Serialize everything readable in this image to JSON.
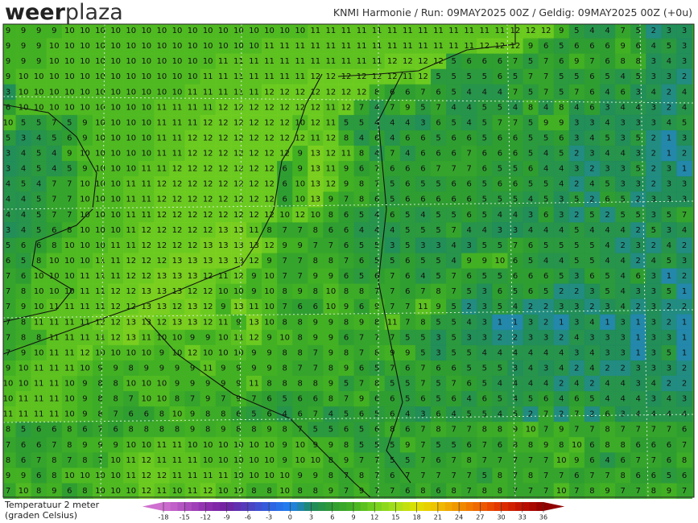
{
  "header": {
    "logo_bold": "weer",
    "logo_light": "plaza",
    "run_info": "KNMI Harmonie / Run: 09MAY2025 00Z / Geldig: 09MAY2025 00Z (+0u)"
  },
  "legend": {
    "title": [
      "Temperatuur 2 meter",
      "(graden Celsius)"
    ],
    "ticks": [
      -18,
      -15,
      -12,
      -9,
      -6,
      -3,
      0,
      3,
      6,
      9,
      12,
      15,
      18,
      21,
      24,
      27,
      30,
      33,
      36
    ],
    "colors": [
      "#d070d0",
      "#b050c0",
      "#9030b0",
      "#7020a0",
      "#5040c0",
      "#3060e0",
      "#2080f0",
      "#1f8a60",
      "#2e9c32",
      "#44b222",
      "#74d01e",
      "#a6e01c",
      "#e0e000",
      "#f0c000",
      "#f09000",
      "#f06000",
      "#e03000",
      "#c01000",
      "#900000"
    ]
  },
  "grid": [
    [
      9,
      9,
      9,
      9,
      10,
      10,
      10,
      10,
      10,
      10,
      10,
      10,
      10,
      10,
      10,
      10,
      10,
      10,
      10,
      10,
      11,
      11,
      11,
      11,
      11,
      11,
      11,
      11,
      11,
      11,
      11,
      11,
      11,
      12,
      12,
      12,
      9,
      5,
      4,
      4,
      7,
      5,
      2,
      3,
      3
    ],
    [
      9,
      9,
      9,
      10,
      10,
      10,
      10,
      10,
      10,
      10,
      10,
      10,
      10,
      10,
      10,
      10,
      10,
      11,
      11,
      11,
      11,
      11,
      11,
      11,
      11,
      11,
      11,
      11,
      11,
      11,
      11,
      12,
      12,
      12,
      9,
      6,
      5,
      6,
      6,
      6,
      9,
      6,
      4,
      5,
      3
    ],
    [
      9,
      9,
      9,
      10,
      10,
      10,
      10,
      10,
      10,
      10,
      10,
      10,
      10,
      10,
      11,
      11,
      11,
      11,
      11,
      11,
      11,
      11,
      11,
      11,
      11,
      12,
      12,
      12,
      12,
      5,
      6,
      6,
      6,
      7,
      5,
      7,
      6,
      9,
      7,
      6,
      8,
      8,
      3,
      4,
      3
    ],
    [
      9,
      10,
      10,
      10,
      10,
      10,
      10,
      10,
      10,
      10,
      10,
      10,
      10,
      11,
      11,
      11,
      11,
      11,
      11,
      11,
      12,
      12,
      12,
      12,
      12,
      12,
      11,
      12,
      5,
      5,
      5,
      5,
      6,
      5,
      7,
      7,
      5,
      5,
      6,
      5,
      4,
      5,
      3,
      3,
      2
    ],
    [
      3,
      10,
      10,
      10,
      10,
      10,
      10,
      10,
      10,
      10,
      10,
      10,
      11,
      11,
      11,
      11,
      11,
      12,
      12,
      12,
      12,
      12,
      12,
      12,
      8,
      6,
      6,
      7,
      6,
      5,
      4,
      4,
      4,
      7,
      5,
      7,
      5,
      7,
      6,
      4,
      6,
      3,
      4,
      2,
      4
    ],
    [
      6,
      10,
      10,
      10,
      10,
      10,
      10,
      10,
      10,
      10,
      11,
      11,
      11,
      11,
      12,
      12,
      12,
      12,
      12,
      12,
      12,
      11,
      12,
      7,
      4,
      7,
      9,
      5,
      7,
      4,
      4,
      5,
      5,
      4,
      8,
      4,
      8,
      4,
      6,
      3,
      4,
      4,
      3,
      2,
      4
    ],
    [
      10,
      5,
      5,
      7,
      5,
      9,
      10,
      10,
      10,
      10,
      11,
      11,
      11,
      12,
      12,
      12,
      12,
      12,
      12,
      10,
      12,
      11,
      5,
      5,
      4,
      4,
      4,
      3,
      6,
      5,
      4,
      5,
      7,
      7,
      5,
      9,
      9,
      3,
      3,
      4,
      3,
      3,
      3,
      4,
      5
    ],
    [
      5,
      3,
      4,
      5,
      6,
      9,
      10,
      10,
      10,
      10,
      11,
      11,
      12,
      12,
      12,
      12,
      12,
      12,
      12,
      12,
      11,
      12,
      8,
      4,
      6,
      4,
      6,
      6,
      5,
      6,
      6,
      5,
      6,
      6,
      5,
      5,
      6,
      3,
      4,
      5,
      3,
      5,
      2,
      1,
      3
    ],
    [
      3,
      4,
      5,
      4,
      9,
      10,
      10,
      10,
      10,
      10,
      11,
      11,
      12,
      12,
      12,
      12,
      12,
      12,
      12,
      9,
      13,
      12,
      11,
      8,
      4,
      7,
      4,
      6,
      6,
      6,
      7,
      6,
      6,
      6,
      5,
      4,
      5,
      2,
      3,
      4,
      4,
      3,
      2,
      1,
      2
    ],
    [
      3,
      4,
      5,
      4,
      5,
      9,
      10,
      10,
      10,
      11,
      11,
      12,
      12,
      12,
      12,
      12,
      12,
      12,
      6,
      9,
      13,
      11,
      9,
      6,
      7,
      6,
      6,
      6,
      7,
      7,
      7,
      6,
      5,
      5,
      6,
      4,
      4,
      3,
      2,
      3,
      3,
      5,
      2,
      3,
      1
    ],
    [
      4,
      5,
      4,
      7,
      7,
      10,
      10,
      10,
      11,
      11,
      12,
      12,
      12,
      12,
      12,
      12,
      12,
      12,
      6,
      10,
      13,
      12,
      9,
      8,
      7,
      5,
      6,
      5,
      5,
      6,
      6,
      5,
      6,
      6,
      5,
      5,
      4,
      2,
      4,
      5,
      3,
      3,
      2,
      3,
      3
    ],
    [
      4,
      4,
      5,
      7,
      7,
      10,
      10,
      10,
      11,
      11,
      12,
      12,
      12,
      12,
      12,
      12,
      12,
      12,
      6,
      10,
      13,
      9,
      7,
      8,
      6,
      5,
      6,
      6,
      6,
      6,
      6,
      5,
      5,
      5,
      4,
      5,
      3,
      5,
      2,
      6,
      5,
      2,
      3,
      3,
      3
    ],
    [
      4,
      4,
      5,
      7,
      7,
      10,
      10,
      10,
      11,
      11,
      12,
      12,
      12,
      12,
      12,
      12,
      12,
      12,
      10,
      12,
      10,
      8,
      6,
      5,
      4,
      6,
      5,
      4,
      5,
      5,
      6,
      5,
      4,
      4,
      3,
      6,
      3,
      2,
      5,
      2,
      5,
      5,
      3,
      5,
      7
    ],
    [
      3,
      4,
      5,
      6,
      8,
      10,
      10,
      10,
      11,
      12,
      12,
      12,
      12,
      12,
      13,
      13,
      11,
      8,
      7,
      7,
      8,
      6,
      6,
      4,
      4,
      4,
      5,
      5,
      5,
      7,
      4,
      4,
      3,
      3,
      4,
      4,
      4,
      5,
      4,
      4,
      4,
      2,
      5,
      3,
      4
    ],
    [
      5,
      6,
      6,
      8,
      10,
      10,
      10,
      11,
      11,
      12,
      12,
      12,
      12,
      13,
      13,
      13,
      13,
      12,
      9,
      9,
      7,
      7,
      6,
      5,
      5,
      3,
      5,
      3,
      3,
      4,
      3,
      5,
      5,
      7,
      6,
      5,
      5,
      5,
      5,
      4,
      2,
      3,
      2,
      4,
      2
    ],
    [
      6,
      5,
      8,
      10,
      10,
      10,
      11,
      11,
      12,
      12,
      12,
      13,
      13,
      13,
      13,
      13,
      12,
      9,
      7,
      7,
      8,
      8,
      7,
      6,
      5,
      5,
      6,
      5,
      5,
      4,
      9,
      9,
      10,
      6,
      5,
      4,
      4,
      5,
      5,
      4,
      4,
      2,
      4,
      5,
      3
    ],
    [
      7,
      6,
      10,
      10,
      10,
      11,
      11,
      11,
      12,
      12,
      13,
      13,
      13,
      12,
      11,
      12,
      9,
      10,
      7,
      7,
      9,
      9,
      6,
      5,
      6,
      7,
      6,
      4,
      5,
      7,
      6,
      5,
      5,
      6,
      6,
      6,
      5,
      3,
      6,
      5,
      4,
      6,
      3,
      1,
      2
    ],
    [
      7,
      8,
      10,
      10,
      10,
      11,
      11,
      12,
      12,
      13,
      13,
      13,
      12,
      12,
      10,
      10,
      9,
      10,
      8,
      9,
      8,
      10,
      8,
      8,
      7,
      7,
      6,
      7,
      8,
      7,
      5,
      3,
      6,
      5,
      6,
      5,
      2,
      2,
      3,
      5,
      4,
      3,
      3,
      5,
      1
    ],
    [
      7,
      9,
      10,
      11,
      11,
      11,
      11,
      12,
      12,
      13,
      13,
      12,
      13,
      12,
      9,
      13,
      11,
      10,
      7,
      6,
      6,
      10,
      9,
      6,
      9,
      7,
      7,
      11,
      9,
      5,
      2,
      3,
      5,
      4,
      2,
      2,
      3,
      3,
      2,
      3,
      4,
      2,
      3,
      2,
      2
    ],
    [
      7,
      8,
      11,
      11,
      11,
      11,
      12,
      12,
      13,
      13,
      12,
      13,
      13,
      12,
      11,
      9,
      13,
      10,
      8,
      8,
      9,
      9,
      8,
      9,
      8,
      11,
      7,
      8,
      5,
      5,
      4,
      3,
      1,
      1,
      3,
      2,
      1,
      3,
      4,
      1,
      3,
      1,
      3,
      2,
      1
    ],
    [
      7,
      8,
      8,
      11,
      11,
      11,
      11,
      12,
      13,
      11,
      10,
      10,
      9,
      9,
      10,
      11,
      12,
      9,
      10,
      8,
      9,
      9,
      6,
      7,
      7,
      7,
      5,
      5,
      3,
      5,
      3,
      3,
      2,
      2,
      3,
      3,
      2,
      4,
      3,
      3,
      3,
      1,
      3,
      3,
      1
    ],
    [
      7,
      9,
      10,
      11,
      11,
      12,
      10,
      10,
      10,
      10,
      9,
      10,
      12,
      10,
      10,
      10,
      9,
      9,
      8,
      8,
      7,
      9,
      8,
      7,
      8,
      9,
      9,
      5,
      3,
      5,
      5,
      4,
      4,
      4,
      4,
      4,
      4,
      3,
      4,
      3,
      3,
      1,
      3,
      5,
      1
    ],
    [
      9,
      10,
      11,
      11,
      11,
      10,
      9,
      9,
      8,
      9,
      9,
      9,
      9,
      11,
      9,
      9,
      9,
      9,
      8,
      7,
      7,
      8,
      9,
      6,
      5,
      7,
      6,
      7,
      6,
      6,
      5,
      5,
      5,
      3,
      4,
      3,
      4,
      2,
      4,
      2,
      2,
      3,
      3,
      3,
      2
    ],
    [
      10,
      10,
      11,
      11,
      10,
      9,
      8,
      8,
      10,
      10,
      10,
      9,
      9,
      9,
      9,
      9,
      11,
      8,
      8,
      8,
      8,
      9,
      5,
      7,
      8,
      5,
      5,
      7,
      5,
      7,
      6,
      5,
      4,
      4,
      4,
      4,
      2,
      4,
      2,
      4,
      4,
      3,
      4,
      2,
      2
    ],
    [
      10,
      11,
      11,
      11,
      10,
      9,
      8,
      8,
      7,
      10,
      10,
      8,
      7,
      9,
      7,
      9,
      7,
      6,
      5,
      6,
      6,
      8,
      7,
      9,
      6,
      6,
      5,
      6,
      5,
      6,
      4,
      6,
      5,
      4,
      5,
      6,
      4,
      6,
      5,
      4,
      4,
      4,
      3,
      4,
      3
    ],
    [
      11,
      11,
      11,
      11,
      10,
      9,
      8,
      7,
      6,
      6,
      8,
      10,
      9,
      8,
      8,
      6,
      5,
      6,
      4,
      6,
      7,
      4,
      5,
      6,
      5,
      6,
      4,
      3,
      6,
      4,
      5,
      5,
      4,
      5,
      2,
      7,
      2,
      7,
      2,
      6,
      3,
      4,
      4,
      4,
      4
    ],
    [
      8,
      5,
      6,
      6,
      8,
      6,
      7,
      6,
      8,
      8,
      8,
      8,
      9,
      8,
      9,
      8,
      8,
      9,
      8,
      7,
      5,
      5,
      6,
      5,
      6,
      8,
      6,
      7,
      8,
      7,
      7,
      8,
      8,
      9,
      10,
      7,
      9,
      7,
      7,
      8,
      7,
      7,
      7,
      7,
      6
    ],
    [
      7,
      6,
      6,
      7,
      8,
      9,
      9,
      9,
      10,
      10,
      11,
      11,
      10,
      10,
      10,
      10,
      10,
      10,
      9,
      10,
      9,
      9,
      8,
      5,
      5,
      5,
      9,
      7,
      5,
      5,
      6,
      7,
      6,
      8,
      8,
      9,
      8,
      10,
      6,
      8,
      8,
      6,
      6,
      6,
      7
    ],
    [
      8,
      6,
      7,
      8,
      7,
      8,
      7,
      10,
      11,
      12,
      11,
      11,
      11,
      10,
      10,
      10,
      10,
      10,
      9,
      10,
      10,
      8,
      9,
      7,
      7,
      5,
      5,
      7,
      6,
      7,
      8,
      7,
      7,
      7,
      7,
      7,
      10,
      9,
      6,
      4,
      6,
      7,
      7,
      6,
      8
    ],
    [
      9,
      9,
      6,
      8,
      10,
      10,
      10,
      10,
      11,
      12,
      12,
      11,
      11,
      11,
      11,
      10,
      10,
      10,
      10,
      9,
      9,
      8,
      7,
      8,
      7,
      6,
      7,
      7,
      7,
      7,
      7,
      5,
      8,
      7,
      8,
      7,
      7,
      6,
      7,
      7,
      8,
      6,
      6,
      5,
      6
    ],
    [
      7,
      10,
      8,
      9,
      6,
      8,
      10,
      10,
      10,
      12,
      11,
      10,
      11,
      12,
      10,
      10,
      8,
      8,
      10,
      8,
      8,
      9,
      7,
      9,
      7,
      7,
      6,
      8,
      6,
      8,
      7,
      8,
      8,
      7,
      7,
      7,
      10,
      7,
      8,
      9,
      7,
      7,
      8,
      9,
      7
    ]
  ]
}
